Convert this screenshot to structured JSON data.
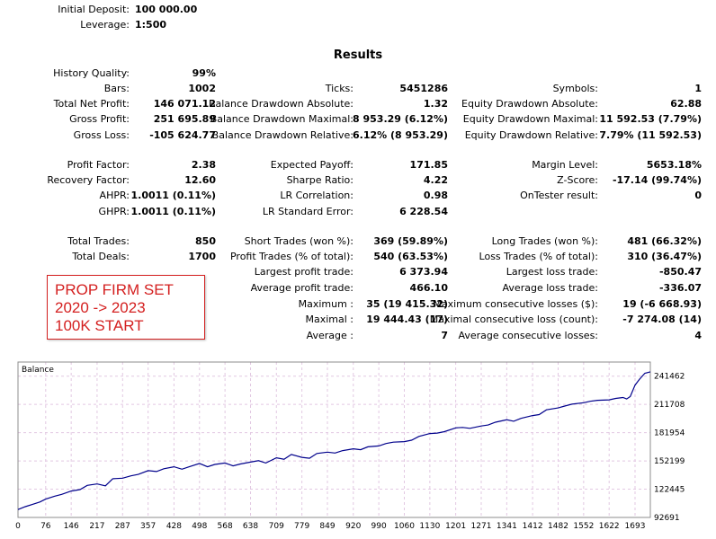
{
  "header": {
    "initial_deposit_label": "Initial Deposit:",
    "initial_deposit_value": "100 000.00",
    "leverage_label": "Leverage:",
    "leverage_value": "1:500",
    "results_title": "Results"
  },
  "stats": {
    "col1": [
      {
        "label": "History Quality:",
        "value": "99%"
      },
      {
        "label": "Bars:",
        "value": "1002"
      },
      {
        "label": "Total Net Profit:",
        "value": "146 071.12"
      },
      {
        "label": "Gross Profit:",
        "value": "251 695.89"
      },
      {
        "label": "Gross Loss:",
        "value": "-105 624.77"
      },
      {
        "label": "Profit Factor:",
        "value": "2.38"
      },
      {
        "label": "Recovery Factor:",
        "value": "12.60"
      },
      {
        "label": "AHPR:",
        "value": "1.0011 (0.11%)"
      },
      {
        "label": "GHPR:",
        "value": "1.0011 (0.11%)"
      },
      {
        "label": "Total Trades:",
        "value": "850"
      },
      {
        "label": "Total Deals:",
        "value": "1700"
      }
    ],
    "col2": [
      {
        "label": "Ticks:",
        "value": "5451286"
      },
      {
        "label": "Balance Drawdown Absolute:",
        "value": "1.32"
      },
      {
        "label": "Balance Drawdown Maximal:",
        "value": "8 953.29 (6.12%)"
      },
      {
        "label": "Balance Drawdown Relative:",
        "value": "6.12% (8 953.29)"
      },
      {
        "label": "Expected Payoff:",
        "value": "171.85"
      },
      {
        "label": "Sharpe Ratio:",
        "value": "4.22"
      },
      {
        "label": "LR Correlation:",
        "value": "0.98"
      },
      {
        "label": "LR Standard Error:",
        "value": "6 228.54"
      },
      {
        "label": "Short Trades (won %):",
        "value": "369 (59.89%)"
      },
      {
        "label": "Profit Trades (% of total):",
        "value": "540 (63.53%)"
      },
      {
        "label": "Largest profit trade:",
        "value": "6 373.94"
      },
      {
        "label": "Average profit trade:",
        "value": "466.10"
      },
      {
        "label": "Maximum :",
        "value": "35 (19 415.32)"
      },
      {
        "label": "Maximal :",
        "value": "19 444.43 (17)"
      },
      {
        "label": "Average :",
        "value": "7"
      }
    ],
    "col3": [
      {
        "label": "Symbols:",
        "value": "1"
      },
      {
        "label": "Equity Drawdown Absolute:",
        "value": "62.88"
      },
      {
        "label": "Equity Drawdown Maximal:",
        "value": "11 592.53 (7.79%)"
      },
      {
        "label": "Equity Drawdown Relative:",
        "value": "7.79% (11 592.53)"
      },
      {
        "label": "Margin Level:",
        "value": "5653.18%"
      },
      {
        "label": "Z-Score:",
        "value": "-17.14 (99.74%)"
      },
      {
        "label": "OnTester result:",
        "value": "0"
      },
      {
        "label": "Long Trades (won %):",
        "value": "481 (66.32%)"
      },
      {
        "label": "Loss Trades (% of total):",
        "value": "310 (36.47%)"
      },
      {
        "label": "Largest loss trade:",
        "value": "-850.47"
      },
      {
        "label": "Average loss trade:",
        "value": "-336.07"
      },
      {
        "label": "Maximum consecutive losses ($):",
        "value": "19 (-6 668.93)"
      },
      {
        "label": "Maximal consecutive loss (count):",
        "value": "-7 274.08 (14)"
      },
      {
        "label": "Average consecutive losses:",
        "value": "4"
      }
    ]
  },
  "note": {
    "line1": "PROP FIRM SET",
    "line2": "2020 -> 2023",
    "line3": "100K START"
  },
  "colors": {
    "line": "#00008b",
    "grid": "#e2c8e2",
    "note": "#d42020"
  },
  "chart_data": {
    "type": "line",
    "title": "Balance",
    "x_ticks": [
      "0",
      "76",
      "146",
      "217",
      "287",
      "357",
      "428",
      "498",
      "568",
      "638",
      "709",
      "779",
      "849",
      "920",
      "990",
      "1060",
      "1130",
      "1201",
      "1271",
      "1341",
      "1412",
      "1482",
      "1552",
      "1622",
      "1693"
    ],
    "y_ticks": [
      "241462",
      "211708",
      "181954",
      "152199",
      "122445",
      "92691"
    ],
    "ylim": [
      92691,
      256339
    ],
    "xlim": [
      0,
      1735
    ],
    "series": [
      {
        "x": [
          0,
          20,
          40,
          60,
          76,
          100,
          120,
          146,
          170,
          190,
          217,
          240,
          260,
          287,
          310,
          330,
          357,
          380,
          400,
          428,
          450,
          470,
          498,
          520,
          540,
          568,
          590,
          610,
          638,
          660,
          680,
          709,
          730,
          750,
          779,
          800,
          820,
          849,
          870,
          890,
          920,
          940,
          960,
          990,
          1010,
          1030,
          1060,
          1080,
          1100,
          1130,
          1150,
          1170,
          1201,
          1220,
          1240,
          1271,
          1290,
          1310,
          1341,
          1360,
          1380,
          1412,
          1430,
          1450,
          1482,
          1500,
          1520,
          1552,
          1570,
          1590,
          1622,
          1640,
          1660,
          1670,
          1680,
          1693,
          1705,
          1720,
          1735
        ],
        "y": [
          101000,
          104000,
          106500,
          109000,
          112000,
          115000,
          117000,
          120500,
          122000,
          126500,
          128000,
          126000,
          133500,
          134000,
          136500,
          138000,
          142000,
          141000,
          144000,
          146000,
          143500,
          146000,
          149500,
          146000,
          148500,
          150000,
          147000,
          149000,
          151000,
          152500,
          150000,
          155500,
          154000,
          159000,
          156000,
          155000,
          160000,
          161500,
          160500,
          163000,
          165000,
          164000,
          167000,
          168000,
          170500,
          172000,
          172500,
          174000,
          178000,
          181000,
          181500,
          183000,
          187000,
          187500,
          186500,
          189000,
          190000,
          193000,
          195500,
          194000,
          197000,
          200000,
          201000,
          206000,
          208000,
          210000,
          212000,
          213500,
          215000,
          216000,
          216500,
          218000,
          219000,
          217500,
          220000,
          232000,
          238000,
          244500,
          246000
        ]
      }
    ]
  }
}
